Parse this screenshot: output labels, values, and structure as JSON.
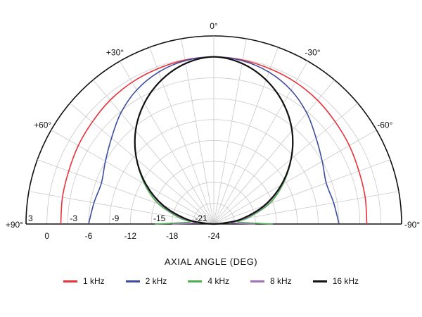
{
  "chart_data": {
    "type": "polar-line",
    "title": "",
    "xlabel": "AXIAL ANGLE (DEG)",
    "angle_range": [
      -90,
      90
    ],
    "radial_range_db": [
      -24,
      3
    ],
    "angle_ticks": [
      {
        "deg": 0,
        "label": "0°"
      },
      {
        "deg": 30,
        "label": "+30°"
      },
      {
        "deg": -30,
        "label": "-30°"
      },
      {
        "deg": 60,
        "label": "+60°"
      },
      {
        "deg": -60,
        "label": "-60°"
      },
      {
        "deg": 90,
        "label": "+90°"
      },
      {
        "deg": -90,
        "label": "-90°"
      }
    ],
    "db_ticks": [
      {
        "db": 3,
        "label": "3",
        "side": "left"
      },
      {
        "db": -3,
        "label": "-3",
        "side": "left"
      },
      {
        "db": -9,
        "label": "-9",
        "side": "left"
      },
      {
        "db": -15,
        "label": "-15",
        "side": "left"
      },
      {
        "db": -21,
        "label": "-21",
        "side": "left"
      },
      {
        "db": 0,
        "label": "0",
        "side": "below"
      },
      {
        "db": -6,
        "label": "-6",
        "side": "below"
      },
      {
        "db": -12,
        "label": "-12",
        "side": "below"
      },
      {
        "db": -18,
        "label": "-18",
        "side": "below"
      },
      {
        "db": -24,
        "label": "-24",
        "side": "below"
      }
    ],
    "grid": true,
    "series": [
      {
        "name": "1 kHz",
        "color": "#e8323c",
        "points": [
          [
            0,
            0
          ],
          [
            10,
            -0.1
          ],
          [
            20,
            -0.3
          ],
          [
            30,
            -0.5
          ],
          [
            40,
            -0.8
          ],
          [
            50,
            -1.2
          ],
          [
            60,
            -1.5
          ],
          [
            70,
            -1.8
          ],
          [
            80,
            -1.9
          ],
          [
            90,
            -2
          ]
        ]
      },
      {
        "name": "2 kHz",
        "color": "#3d4c9c",
        "points": [
          [
            0,
            0
          ],
          [
            10,
            -0.2
          ],
          [
            20,
            -0.8
          ],
          [
            30,
            -1.8
          ],
          [
            40,
            -3.2
          ],
          [
            50,
            -4.8
          ],
          [
            60,
            -6
          ],
          [
            70,
            -6.8
          ],
          [
            80,
            -6.5
          ],
          [
            90,
            -6
          ]
        ]
      },
      {
        "name": "4 kHz",
        "color": "#4caf50",
        "points": [
          [
            0,
            0
          ],
          [
            10,
            -0.6
          ],
          [
            20,
            -2
          ],
          [
            30,
            -4
          ],
          [
            40,
            -6.5
          ],
          [
            50,
            -9.5
          ],
          [
            60,
            -12.5
          ],
          [
            70,
            -15.5
          ],
          [
            80,
            -19
          ],
          [
            85,
            -20.5
          ],
          [
            90,
            -15.5
          ]
        ]
      },
      {
        "name": "8 kHz",
        "color": "#a070b8",
        "points": [
          [
            0,
            0
          ],
          [
            10,
            -0.6
          ],
          [
            20,
            -2
          ],
          [
            30,
            -4
          ],
          [
            40,
            -6.5
          ],
          [
            50,
            -9.5
          ],
          [
            60,
            -12.7
          ],
          [
            70,
            -16
          ],
          [
            80,
            -19.5
          ],
          [
            85,
            -21.5
          ],
          [
            90,
            -18
          ]
        ]
      },
      {
        "name": "16 kHz",
        "color": "#111111",
        "points": [
          [
            0,
            0
          ],
          [
            10,
            -0.6
          ],
          [
            20,
            -2
          ],
          [
            30,
            -4
          ],
          [
            40,
            -6.5
          ],
          [
            50,
            -9.5
          ],
          [
            60,
            -12.8
          ],
          [
            70,
            -16.3
          ],
          [
            80,
            -20
          ],
          [
            85,
            -22.5
          ],
          [
            90,
            -24
          ]
        ]
      }
    ],
    "legend_position": "bottom"
  }
}
